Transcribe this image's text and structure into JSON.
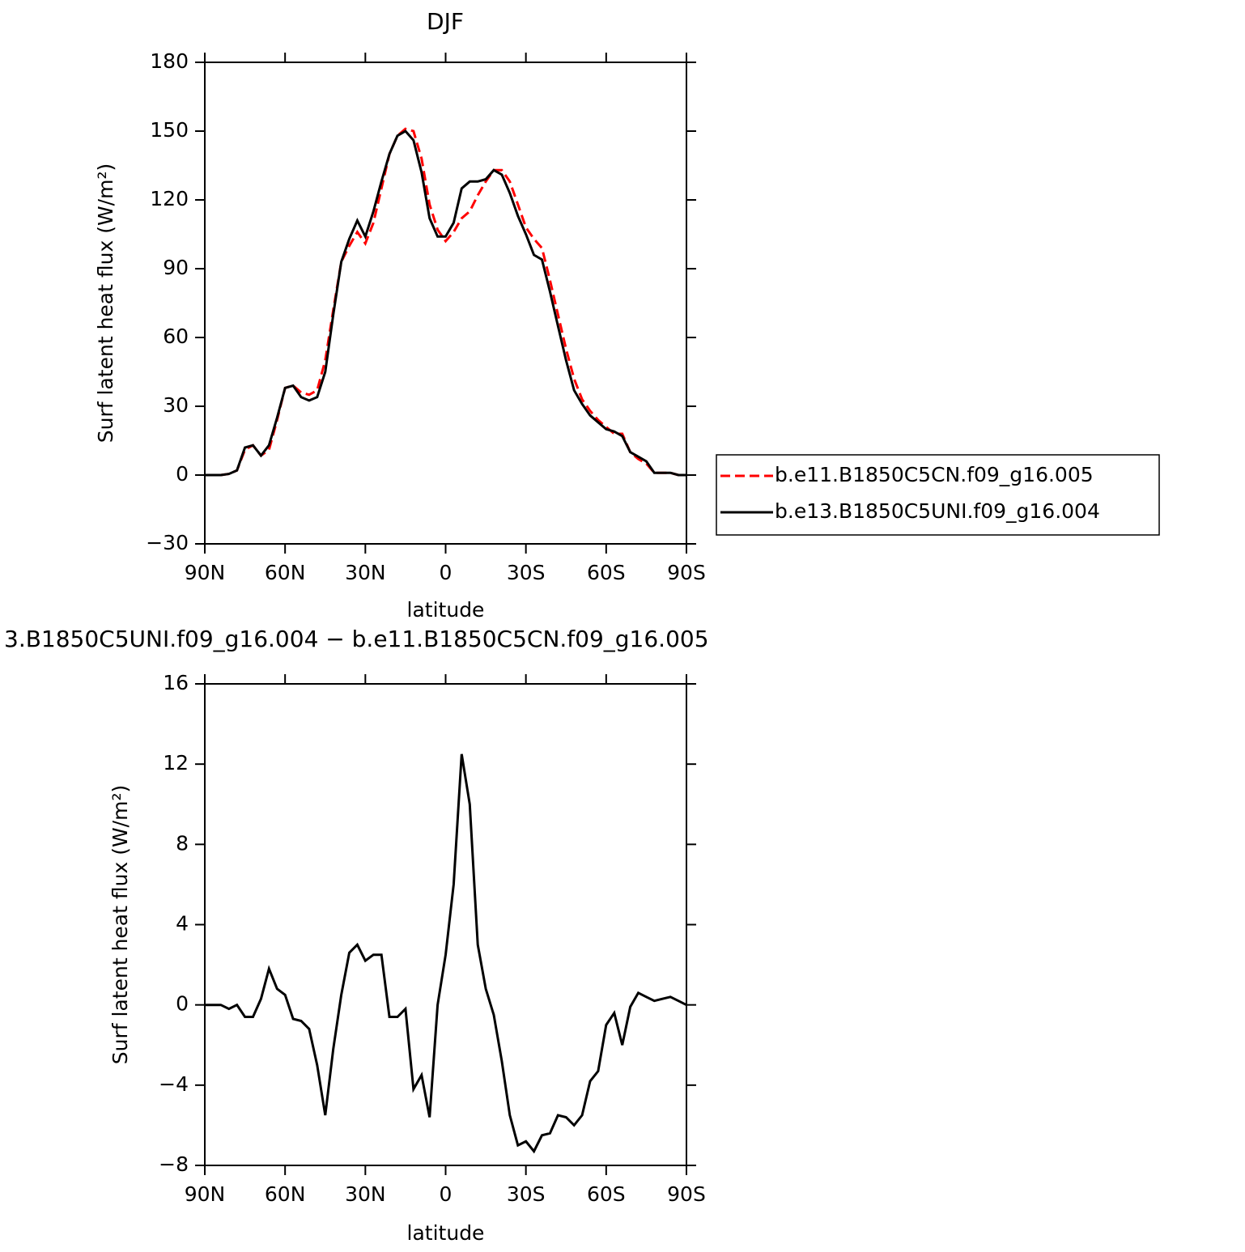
{
  "chart_data": [
    {
      "type": "line",
      "title": "DJF",
      "xlabel": "latitude",
      "ylabel": "Surf latent heat flux (W/m²)",
      "x": [
        90,
        87,
        84,
        81,
        78,
        75,
        72,
        69,
        66,
        63,
        60,
        57,
        54,
        51,
        48,
        45,
        42,
        39,
        36,
        33,
        30,
        27,
        24,
        21,
        18,
        15,
        12,
        9,
        6,
        3,
        0,
        -3,
        -6,
        -9,
        -12,
        -15,
        -18,
        -21,
        -24,
        -27,
        -30,
        -33,
        -36,
        -39,
        -42,
        -45,
        -48,
        -51,
        -54,
        -57,
        -60,
        -63,
        -66,
        -69,
        -72,
        -75,
        -78,
        -81,
        -84,
        -87,
        -90
      ],
      "series": [
        {
          "name": "b.e11.B1850C5CN.f09_g16.005",
          "color": "#ff0000",
          "line_style": "dashed",
          "values": [
            0,
            0,
            0,
            0.5,
            2,
            11,
            13,
            8.5,
            11,
            24,
            38,
            39,
            36,
            35,
            37,
            50,
            72,
            93,
            100,
            106,
            101,
            110,
            125,
            140,
            148,
            151,
            150,
            138,
            118,
            107,
            102,
            106,
            112,
            115,
            122,
            128,
            133,
            133,
            128,
            118,
            108,
            103,
            99,
            85,
            70,
            55,
            42,
            33,
            28,
            24,
            21,
            18,
            18,
            10,
            7,
            5,
            1,
            1,
            1,
            0,
            0
          ]
        },
        {
          "name": "b.e13.B1850C5UNI.f09_g16.004",
          "color": "#000000",
          "line_style": "solid",
          "values": [
            0,
            0,
            0,
            0.5,
            2,
            12,
            13,
            8.5,
            13,
            25,
            38,
            39,
            34,
            32.5,
            34,
            45,
            70,
            93,
            103,
            111,
            104,
            115,
            128,
            140,
            148,
            150,
            146,
            132,
            112,
            104,
            104,
            110,
            125,
            128,
            128,
            129,
            133,
            131,
            123,
            113,
            105,
            96,
            94,
            80,
            65,
            50,
            37,
            31,
            26,
            23,
            20,
            19,
            17,
            10,
            8,
            6,
            1,
            1,
            1,
            0,
            0
          ]
        }
      ],
      "xlim": [
        90,
        -90
      ],
      "xticks": [
        {
          "value": 90,
          "label": "90N"
        },
        {
          "value": 60,
          "label": "60N"
        },
        {
          "value": 30,
          "label": "30N"
        },
        0,
        {
          "value": -30,
          "label": "30S"
        },
        {
          "value": -60,
          "label": "60S"
        },
        {
          "value": -90,
          "label": "90S"
        }
      ],
      "ylim": [
        -30,
        180
      ],
      "yticks": [
        {
          "value": -30,
          "label": "−30"
        },
        0,
        30,
        60,
        90,
        120,
        150,
        180
      ],
      "legend": "right"
    },
    {
      "type": "line",
      "title": "3.B1850C5UNI.f09_g16.004 − b.e11.B1850C5CN.f09_g16.005",
      "xlabel": "latitude",
      "ylabel": "Surf latent heat flux (W/m²)",
      "x": [
        90,
        87,
        84,
        81,
        78,
        75,
        72,
        69,
        66,
        63,
        60,
        57,
        54,
        51,
        48,
        45,
        42,
        39,
        36,
        33,
        30,
        27,
        24,
        21,
        18,
        15,
        12,
        9,
        6,
        3,
        0,
        -3,
        -6,
        -9,
        -12,
        -15,
        -18,
        -21,
        -24,
        -27,
        -30,
        -33,
        -36,
        -39,
        -42,
        -45,
        -48,
        -51,
        -54,
        -57,
        -60,
        -63,
        -66,
        -69,
        -72,
        -75,
        -78,
        -81,
        -84,
        -87,
        -90
      ],
      "series": [
        {
          "color": "#000000",
          "line_style": "solid",
          "values": [
            0,
            0,
            0,
            -0.2,
            0,
            -0.6,
            -0.6,
            0.3,
            1.8,
            0.8,
            0.5,
            -0.7,
            -0.8,
            -1.2,
            -3,
            -5.5,
            -2.2,
            0.5,
            2.6,
            3.0,
            2.2,
            2.5,
            2.5,
            -0.6,
            -0.6,
            -0.2,
            -4.2,
            -3.5,
            -5.6,
            0,
            2.5,
            6,
            12.5,
            10,
            3,
            0.8,
            -0.5,
            -2.8,
            -5.5,
            -7,
            -6.8,
            -7.3,
            -6.5,
            -6.4,
            -5.5,
            -5.6,
            -6,
            -5.5,
            -3.8,
            -3.3,
            -1,
            -0.4,
            -2,
            -0.1,
            0.6,
            0.4,
            0.2,
            0.3,
            0.4,
            0.2,
            0
          ]
        }
      ],
      "xlim": [
        90,
        -90
      ],
      "xticks": [
        {
          "value": 90,
          "label": "90N"
        },
        {
          "value": 60,
          "label": "60N"
        },
        {
          "value": 30,
          "label": "30N"
        },
        0,
        {
          "value": -30,
          "label": "30S"
        },
        {
          "value": -60,
          "label": "60S"
        },
        {
          "value": -90,
          "label": "90S"
        }
      ],
      "ylim": [
        -8,
        16
      ],
      "yticks": [
        {
          "value": -8,
          "label": "−8"
        },
        {
          "value": -4,
          "label": "−4"
        },
        0,
        4,
        8,
        12,
        16
      ]
    }
  ]
}
